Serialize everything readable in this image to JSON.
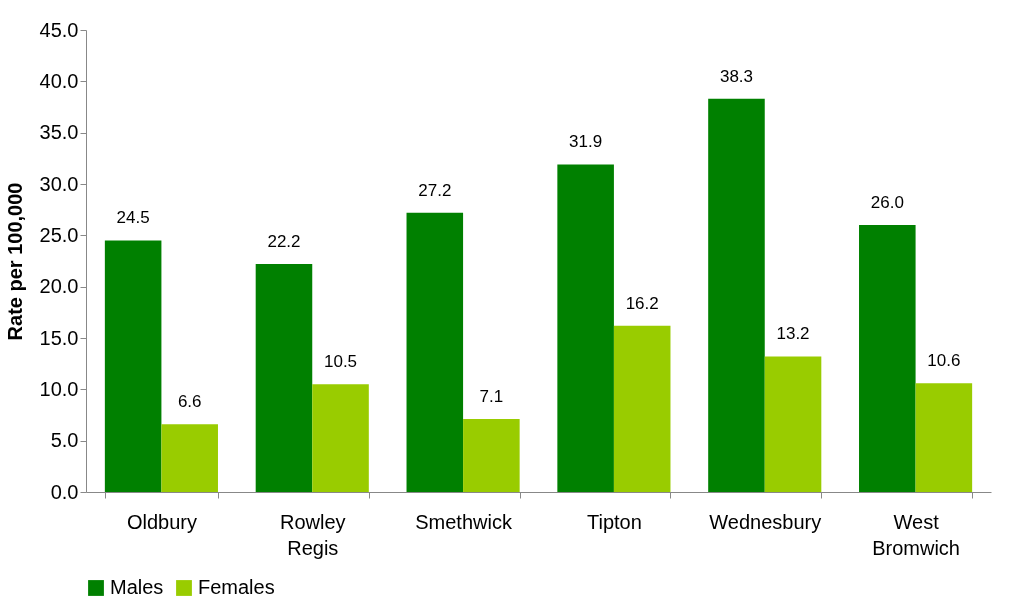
{
  "chart_data": {
    "type": "bar",
    "ylabel": "Rate per 100,000",
    "categories": [
      "Oldbury",
      "Rowley Regis",
      "Smethwick",
      "Tipton",
      "Wednesbury",
      "West Bromwich"
    ],
    "series": [
      {
        "name": "Males",
        "color": "#008000",
        "values": [
          24.5,
          22.2,
          27.2,
          31.9,
          38.3,
          26.0
        ],
        "value_labels": [
          "24.5",
          "22.2",
          "27.2",
          "31.9",
          "38.3",
          "26.0"
        ]
      },
      {
        "name": "Females",
        "color": "#99cc00",
        "values": [
          6.6,
          10.5,
          7.1,
          16.2,
          13.2,
          10.6
        ],
        "value_labels": [
          "6.6",
          "10.5",
          "7.1",
          "16.2",
          "13.2",
          "10.6"
        ]
      }
    ],
    "ylim": [
      0,
      45
    ],
    "yticks": [
      {
        "value": 0,
        "label": "0.0"
      },
      {
        "value": 5,
        "label": "5.0"
      },
      {
        "value": 10,
        "label": "10.0"
      },
      {
        "value": 15,
        "label": "15.0"
      },
      {
        "value": 20,
        "label": "20.0"
      },
      {
        "value": 25,
        "label": "25.0"
      },
      {
        "value": 30,
        "label": "30.0"
      },
      {
        "value": 35,
        "label": "35.0"
      },
      {
        "value": 40,
        "label": "40.0"
      },
      {
        "value": 45,
        "label": "45.0"
      }
    ],
    "grid": false,
    "legend": "bottom"
  }
}
